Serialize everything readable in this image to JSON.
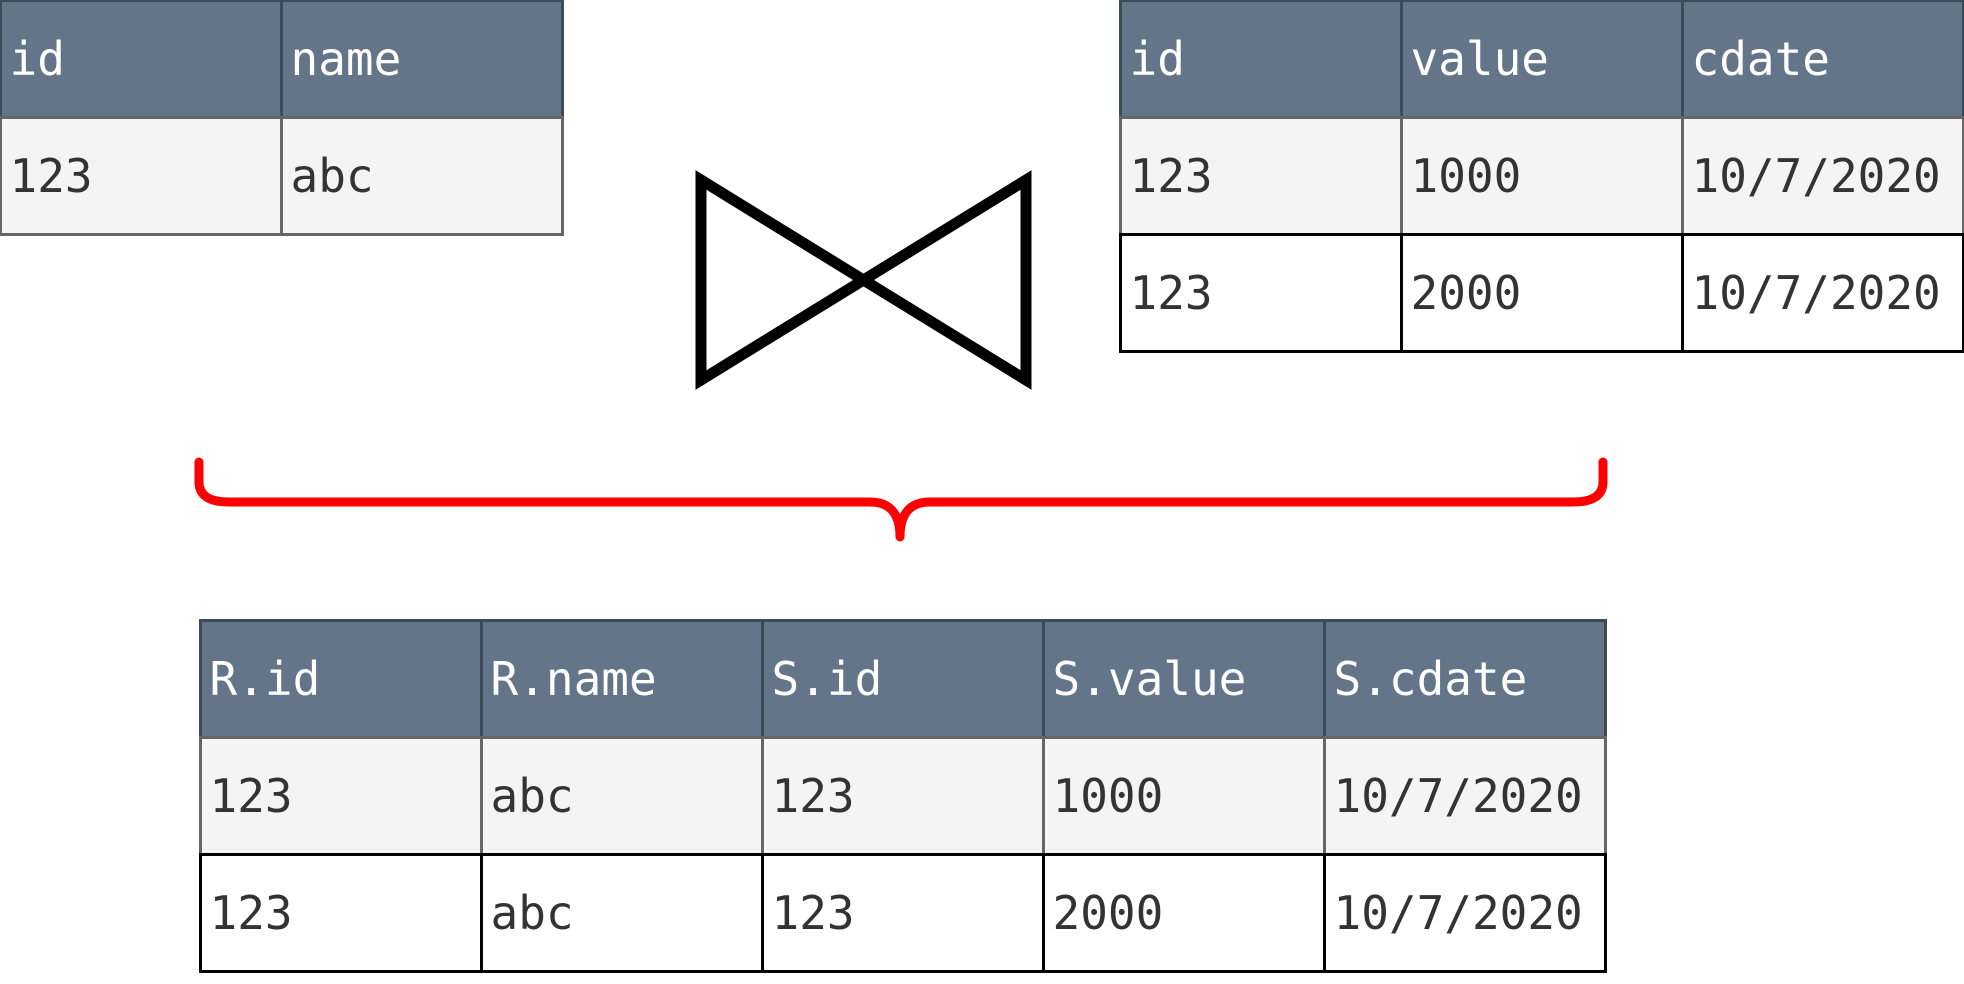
{
  "table_r": {
    "headers": [
      "id",
      "name"
    ],
    "rows": [
      [
        "123",
        "abc"
      ]
    ]
  },
  "table_s": {
    "headers": [
      "id",
      "value",
      "cdate"
    ],
    "rows": [
      [
        "123",
        "1000",
        "10/7/2020"
      ],
      [
        "123",
        "2000",
        "10/7/2020"
      ]
    ]
  },
  "join_symbol": {
    "icon": "bowtie-join-icon"
  },
  "brace": {
    "icon": "curly-brace-icon",
    "color": "#ff0000"
  },
  "result_table": {
    "headers": [
      "R.id",
      "R.name",
      "S.id",
      "S.value",
      "S.cdate"
    ],
    "rows": [
      [
        "123",
        "abc",
        "123",
        "1000",
        "10/7/2020"
      ],
      [
        "123",
        "abc",
        "123",
        "2000",
        "10/7/2020"
      ]
    ]
  },
  "colors": {
    "header_bg": "#647589",
    "shaded_row_bg": "#f4f4f4",
    "brace": "#ff0000"
  }
}
